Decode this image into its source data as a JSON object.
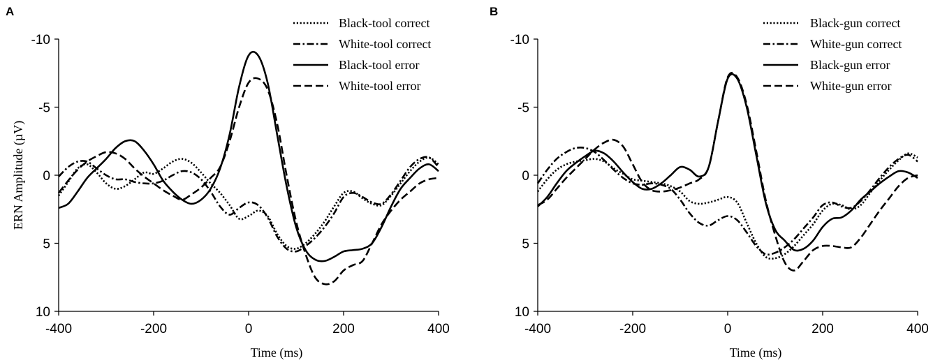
{
  "chart_data": [
    {
      "type": "line",
      "panel_label": "A",
      "xlabel": "Time (ms)",
      "ylabel": "ERN Amplitude (µV)",
      "xlim": [
        -400,
        400
      ],
      "ylim": [
        -10,
        10
      ],
      "y_inverted": true,
      "xticks": [
        -400,
        -200,
        0,
        200,
        400
      ],
      "yticks": [
        -10,
        -5,
        0,
        5,
        10
      ],
      "xtick_labels": [
        "-400",
        "-200",
        "0",
        "200",
        "400"
      ],
      "ytick_labels": [
        "-10",
        "-5",
        "0",
        "5",
        "10"
      ],
      "grid": false,
      "legend_position": "top-right",
      "series": [
        {
          "name": "Black-tool correct",
          "style": "dotted",
          "x": [
            -400,
            -380,
            -360,
            -340,
            -320,
            -300,
            -280,
            -260,
            -240,
            -220,
            -200,
            -180,
            -160,
            -140,
            -120,
            -100,
            -80,
            -60,
            -40,
            -20,
            0,
            20,
            40,
            60,
            80,
            100,
            120,
            140,
            160,
            180,
            200,
            220,
            240,
            260,
            280,
            300,
            320,
            340,
            360,
            380,
            400
          ],
          "y": [
            1.5,
            0.5,
            -0.5,
            -0.8,
            -0.2,
            0.6,
            1.0,
            0.8,
            0.3,
            -0.2,
            -0.1,
            -0.5,
            -1.0,
            -1.2,
            -0.9,
            -0.2,
            0.6,
            1.3,
            2.2,
            3.2,
            3.0,
            2.6,
            3.0,
            4.3,
            5.2,
            5.4,
            5.0,
            4.3,
            3.4,
            2.3,
            1.3,
            1.2,
            1.7,
            2.1,
            2.2,
            1.5,
            0.6,
            -0.3,
            -1.0,
            -1.3,
            -0.8
          ]
        },
        {
          "name": "White-tool correct",
          "style": "dashdot",
          "x": [
            -400,
            -380,
            -360,
            -340,
            -320,
            -300,
            -280,
            -260,
            -240,
            -220,
            -200,
            -180,
            -160,
            -140,
            -120,
            -100,
            -80,
            -60,
            -40,
            -20,
            0,
            20,
            40,
            60,
            80,
            100,
            120,
            140,
            160,
            180,
            200,
            220,
            240,
            260,
            280,
            300,
            320,
            340,
            360,
            380,
            400
          ],
          "y": [
            0.1,
            -0.6,
            -1.0,
            -1.0,
            -0.5,
            0.0,
            0.3,
            0.3,
            0.5,
            0.6,
            0.6,
            0.4,
            0.0,
            -0.3,
            -0.2,
            0.3,
            1.2,
            2.3,
            2.9,
            2.4,
            2.0,
            2.2,
            3.1,
            4.5,
            5.4,
            5.6,
            5.2,
            4.6,
            3.8,
            2.8,
            1.6,
            1.3,
            1.6,
            2.0,
            2.1,
            1.4,
            0.4,
            -0.6,
            -1.2,
            -1.3,
            -0.6
          ]
        },
        {
          "name": "Black-tool error",
          "style": "solid",
          "x": [
            -400,
            -380,
            -360,
            -340,
            -320,
            -300,
            -280,
            -260,
            -240,
            -220,
            -200,
            -180,
            -160,
            -140,
            -120,
            -100,
            -80,
            -60,
            -40,
            -20,
            0,
            20,
            40,
            60,
            80,
            100,
            120,
            140,
            160,
            180,
            200,
            220,
            240,
            260,
            280,
            300,
            320,
            340,
            360,
            380,
            400
          ],
          "y": [
            2.4,
            2.1,
            1.2,
            0.2,
            -0.5,
            -1.2,
            -2.0,
            -2.5,
            -2.5,
            -1.8,
            -0.8,
            0.4,
            1.2,
            1.8,
            2.1,
            1.8,
            1.0,
            -0.5,
            -3.0,
            -6.5,
            -8.8,
            -8.8,
            -6.8,
            -3.0,
            0.8,
            3.8,
            5.5,
            6.2,
            6.3,
            6.0,
            5.6,
            5.5,
            5.4,
            5.0,
            3.8,
            2.3,
            1.0,
            0.2,
            -0.5,
            -0.8,
            -0.3
          ]
        },
        {
          "name": "White-tool error",
          "style": "dashed",
          "x": [
            -400,
            -380,
            -360,
            -340,
            -320,
            -300,
            -280,
            -260,
            -240,
            -220,
            -200,
            -180,
            -160,
            -140,
            -120,
            -100,
            -80,
            -60,
            -40,
            -20,
            0,
            20,
            40,
            60,
            80,
            100,
            120,
            140,
            160,
            180,
            200,
            220,
            240,
            260,
            280,
            300,
            320,
            340,
            360,
            380,
            400
          ],
          "y": [
            1.3,
            0.4,
            -0.4,
            -1.0,
            -1.4,
            -1.7,
            -1.6,
            -1.2,
            -0.5,
            0.1,
            0.6,
            1.1,
            1.5,
            1.8,
            1.4,
            0.9,
            0.2,
            -0.6,
            -2.5,
            -5.0,
            -6.8,
            -7.1,
            -6.3,
            -3.8,
            0.0,
            3.4,
            5.8,
            7.5,
            8.0,
            7.8,
            7.0,
            6.6,
            6.3,
            5.0,
            3.6,
            2.6,
            1.8,
            1.2,
            0.6,
            0.3,
            0.2
          ]
        }
      ]
    },
    {
      "type": "line",
      "panel_label": "B",
      "xlabel": "Time (ms)",
      "ylabel": "",
      "xlim": [
        -400,
        400
      ],
      "ylim": [
        -10,
        10
      ],
      "y_inverted": true,
      "xticks": [
        -400,
        -200,
        0,
        200,
        400
      ],
      "yticks": [
        -10,
        -5,
        0,
        5,
        10
      ],
      "xtick_labels": [
        "-400",
        "-200",
        "0",
        "200",
        "400"
      ],
      "ytick_labels": [
        "-10",
        "-5",
        "0",
        "5",
        "10"
      ],
      "grid": false,
      "legend_position": "top-right",
      "series": [
        {
          "name": "Black-gun correct",
          "style": "dotted",
          "x": [
            -400,
            -380,
            -360,
            -340,
            -320,
            -300,
            -280,
            -260,
            -240,
            -220,
            -200,
            -180,
            -160,
            -140,
            -120,
            -100,
            -80,
            -60,
            -40,
            -20,
            0,
            20,
            40,
            60,
            80,
            100,
            120,
            140,
            160,
            180,
            200,
            220,
            240,
            260,
            280,
            300,
            320,
            340,
            360,
            380,
            400
          ],
          "y": [
            1.2,
            0.3,
            -0.4,
            -0.8,
            -1.0,
            -1.1,
            -1.2,
            -1.0,
            -0.5,
            -0.1,
            0.3,
            0.4,
            0.5,
            0.6,
            0.8,
            1.2,
            1.9,
            2.1,
            2.0,
            1.8,
            1.6,
            2.0,
            3.5,
            5.0,
            6.0,
            6.1,
            5.8,
            5.2,
            4.4,
            3.6,
            2.6,
            2.1,
            2.2,
            2.5,
            2.2,
            1.3,
            0.4,
            -0.4,
            -1.1,
            -1.6,
            -1.3
          ]
        },
        {
          "name": "White-gun correct",
          "style": "dashdot",
          "x": [
            -400,
            -380,
            -360,
            -340,
            -320,
            -300,
            -280,
            -260,
            -240,
            -220,
            -200,
            -180,
            -160,
            -140,
            -120,
            -100,
            -80,
            -60,
            -40,
            -20,
            0,
            20,
            40,
            60,
            80,
            100,
            120,
            140,
            160,
            180,
            200,
            220,
            240,
            260,
            280,
            300,
            320,
            340,
            360,
            380,
            400
          ],
          "y": [
            0.6,
            -0.4,
            -1.2,
            -1.7,
            -2.0,
            -2.0,
            -1.7,
            -1.1,
            -0.4,
            0.2,
            0.6,
            0.7,
            0.6,
            0.7,
            1.0,
            1.8,
            2.8,
            3.5,
            3.7,
            3.3,
            3.0,
            3.3,
            4.2,
            5.2,
            5.8,
            5.7,
            5.3,
            4.7,
            3.9,
            3.1,
            2.2,
            2.0,
            2.3,
            2.4,
            1.9,
            1.1,
            0.2,
            -0.6,
            -1.2,
            -1.5,
            -1.0
          ]
        },
        {
          "name": "Black-gun error",
          "style": "solid",
          "x": [
            -400,
            -380,
            -360,
            -340,
            -320,
            -300,
            -280,
            -260,
            -240,
            -220,
            -200,
            -180,
            -160,
            -140,
            -120,
            -100,
            -80,
            -60,
            -40,
            -20,
            0,
            20,
            40,
            60,
            80,
            100,
            120,
            140,
            160,
            180,
            200,
            220,
            240,
            260,
            280,
            300,
            320,
            340,
            360,
            380,
            400
          ],
          "y": [
            2.3,
            1.6,
            0.6,
            -0.3,
            -0.9,
            -1.4,
            -1.8,
            -1.6,
            -1.0,
            -0.2,
            0.5,
            1.0,
            1.0,
            0.6,
            0.0,
            -0.6,
            -0.4,
            0.1,
            -0.6,
            -4.0,
            -7.1,
            -7.1,
            -5.0,
            -1.5,
            2.0,
            4.0,
            4.8,
            5.5,
            5.4,
            4.8,
            3.8,
            3.2,
            3.1,
            2.6,
            1.8,
            1.2,
            0.6,
            0.1,
            -0.3,
            -0.2,
            0.2
          ]
        },
        {
          "name": "White-gun error",
          "style": "dashed",
          "x": [
            -400,
            -380,
            -360,
            -340,
            -320,
            -300,
            -280,
            -260,
            -240,
            -220,
            -200,
            -180,
            -160,
            -140,
            -120,
            -100,
            -80,
            -60,
            -40,
            -20,
            0,
            20,
            40,
            60,
            80,
            100,
            120,
            140,
            160,
            180,
            200,
            220,
            240,
            260,
            280,
            300,
            320,
            340,
            360,
            380,
            400
          ],
          "y": [
            2.2,
            1.8,
            1.0,
            0.2,
            -0.5,
            -1.2,
            -1.9,
            -2.4,
            -2.6,
            -2.1,
            -0.8,
            0.5,
            1.1,
            1.2,
            1.1,
            0.9,
            0.6,
            0.3,
            -0.6,
            -4.0,
            -7.2,
            -7.2,
            -5.2,
            -1.8,
            1.8,
            4.4,
            6.4,
            7.0,
            6.3,
            5.5,
            5.2,
            5.2,
            5.3,
            5.3,
            4.6,
            3.6,
            2.6,
            1.7,
            0.8,
            0.2,
            0.0
          ]
        }
      ]
    }
  ]
}
